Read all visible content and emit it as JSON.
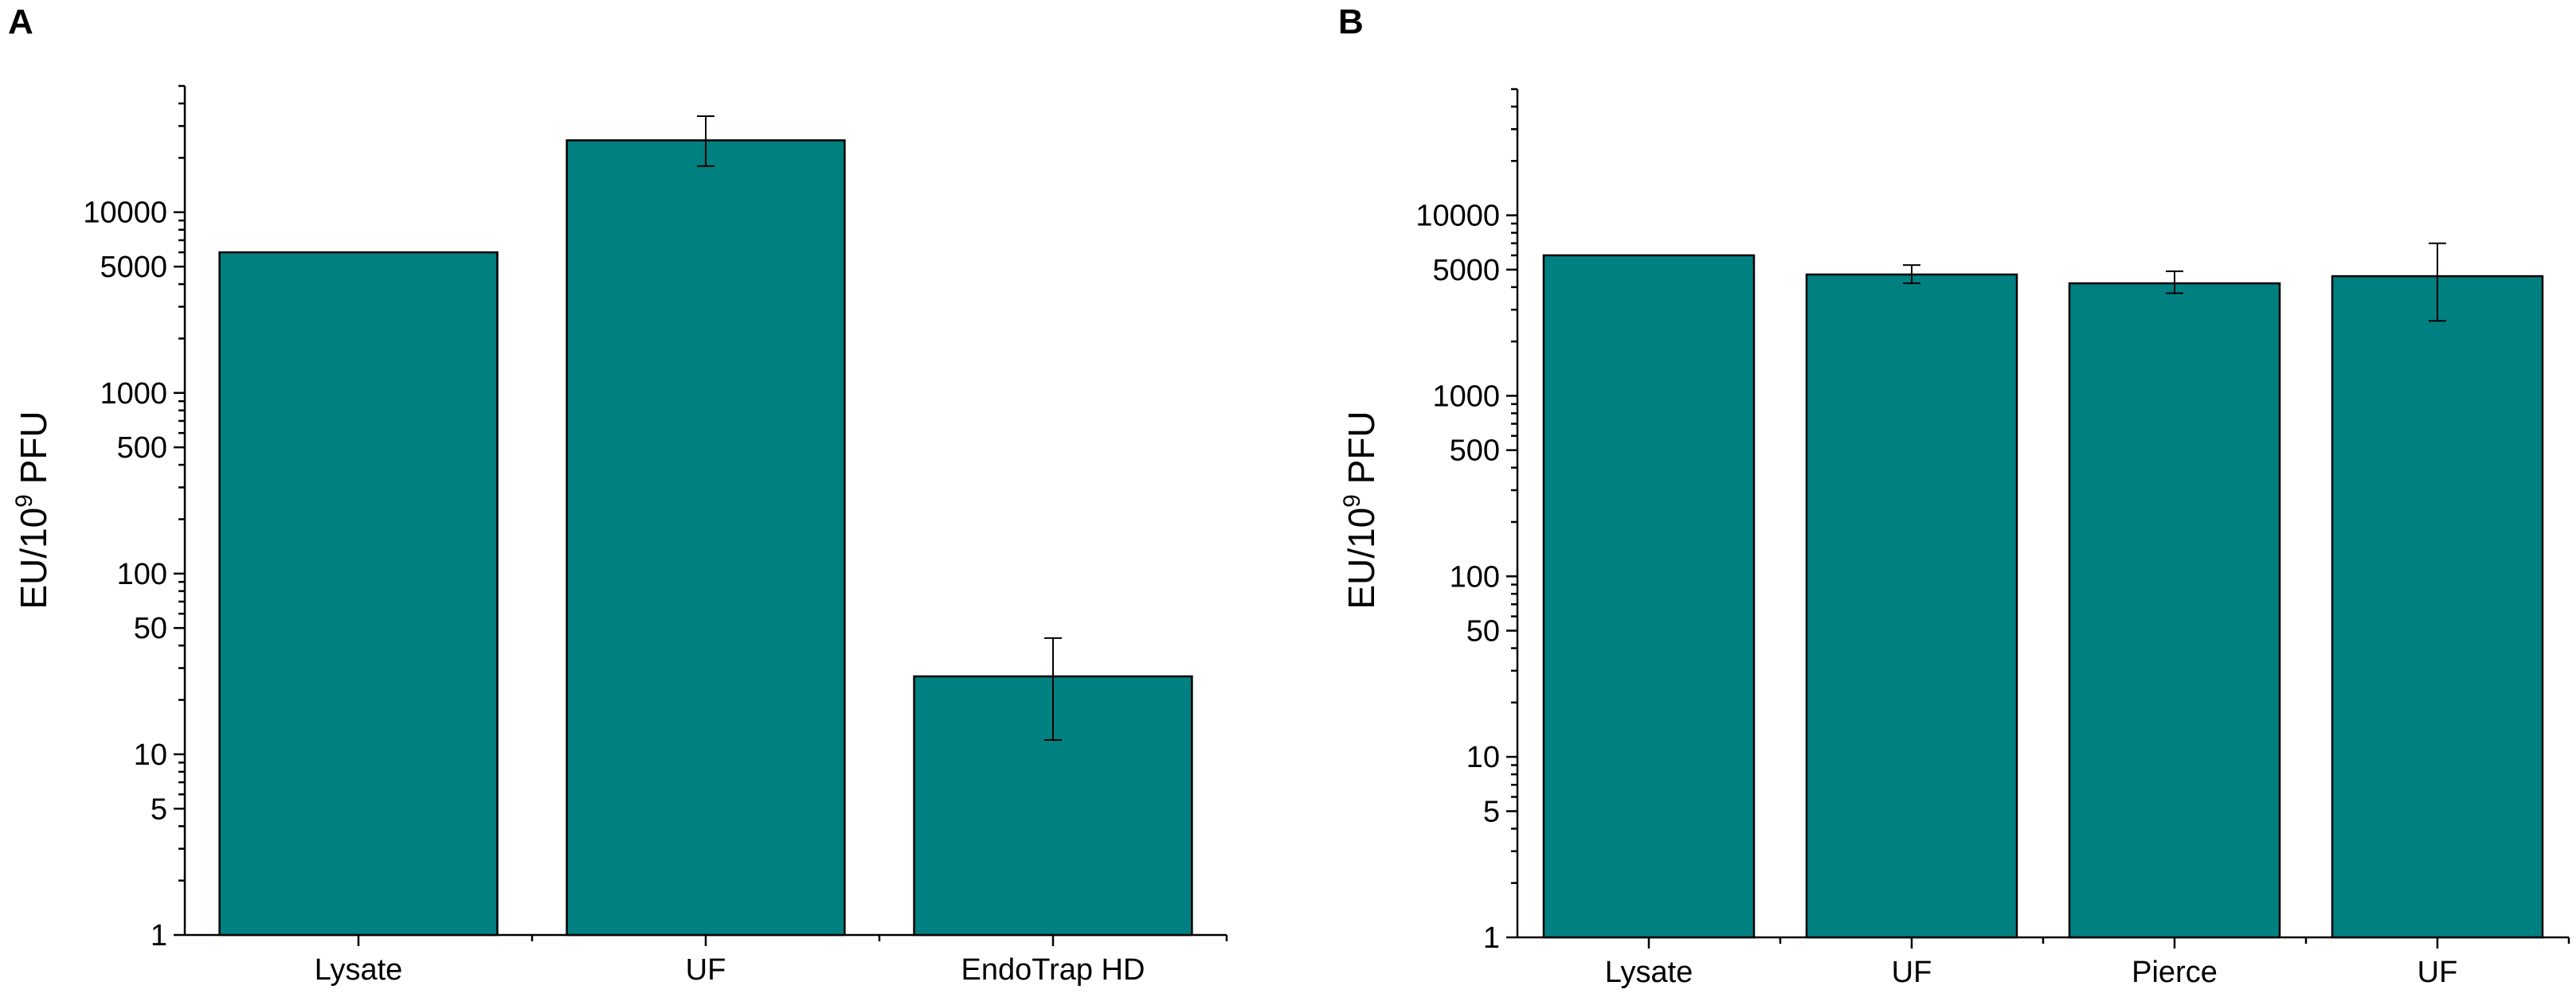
{
  "chart_data": [
    {
      "panel": "A",
      "type": "bar",
      "ylabel_main": "EU/10",
      "ylabel_sup": "9",
      "ylabel_tail": " PFU",
      "yscale": "log",
      "ylim": [
        1,
        50000
      ],
      "yticks": [
        1,
        5,
        10,
        50,
        100,
        500,
        1000,
        5000,
        10000
      ],
      "ytick_labels": [
        "1",
        "5",
        "10",
        "50",
        "100",
        "500",
        "1000",
        "5000",
        "10000"
      ],
      "categories": [
        "Lysate",
        "UF",
        "EndoTrap HD"
      ],
      "values": [
        6000,
        25000,
        27
      ],
      "errors": [
        null,
        [
          18000,
          34000
        ],
        [
          12,
          44
        ]
      ],
      "color": "#008080",
      "legend": "none",
      "grid": false
    },
    {
      "panel": "B",
      "type": "bar",
      "ylabel_main": "EU/10",
      "ylabel_sup": "9",
      "ylabel_tail": " PFU",
      "yscale": "log",
      "ylim": [
        1,
        50000
      ],
      "yticks": [
        1,
        5,
        10,
        50,
        100,
        500,
        1000,
        5000,
        10000
      ],
      "ytick_labels": [
        "1",
        "5",
        "10",
        "50",
        "100",
        "500",
        "1000",
        "5000",
        "10000"
      ],
      "categories": [
        "Lysate",
        "UF",
        "Pierce",
        "UF"
      ],
      "values": [
        6000,
        4700,
        4200,
        4600
      ],
      "errors": [
        null,
        [
          4200,
          5300
        ],
        [
          3700,
          4900
        ],
        [
          2600,
          7000
        ]
      ],
      "color": "#008080",
      "legend": "none",
      "grid": false
    }
  ]
}
